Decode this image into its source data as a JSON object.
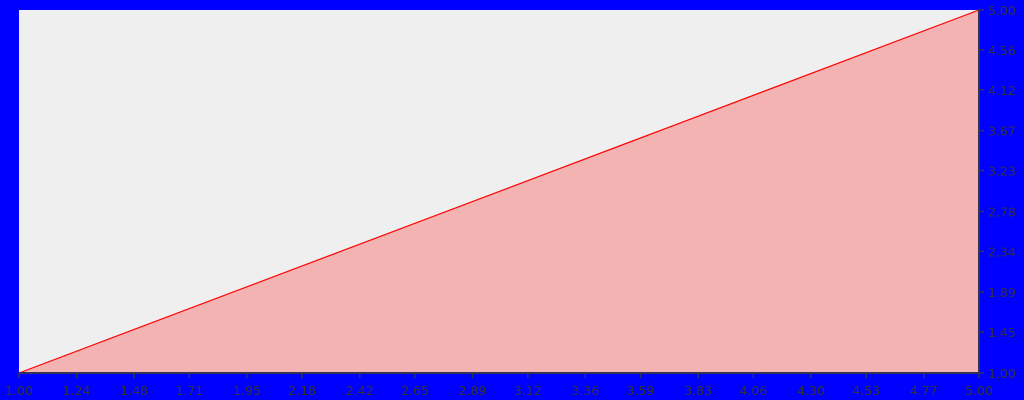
{
  "chart_data": {
    "type": "area",
    "title": "",
    "xlabel": "",
    "ylabel": "",
    "xlim": [
      1.0,
      5.0
    ],
    "ylim": [
      1.0,
      5.0
    ],
    "grid": false,
    "legend": "none",
    "x_ticks": [
      "1.00",
      "1.24",
      "1.48",
      "1.71",
      "1.95",
      "2.18",
      "2.42",
      "2.65",
      "2.89",
      "3.12",
      "3.36",
      "3.59",
      "3.83",
      "4.06",
      "4.30",
      "4.53",
      "4.77",
      "5.00"
    ],
    "y_ticks": [
      "1.00",
      "1.45",
      "1.89",
      "2.34",
      "2.78",
      "3.23",
      "3.67",
      "4.12",
      "4.56",
      "5.00"
    ],
    "y_axis_side": "right",
    "series": [
      {
        "x": [
          1.0,
          5.0
        ],
        "y": [
          1.0,
          5.0
        ]
      }
    ],
    "colors": {
      "background": "#0000ff",
      "plot_background": "#efefef",
      "line": "#ff0000",
      "fill": "#f4b3b3",
      "axis": "#333355",
      "tick_label": "#333333"
    }
  }
}
